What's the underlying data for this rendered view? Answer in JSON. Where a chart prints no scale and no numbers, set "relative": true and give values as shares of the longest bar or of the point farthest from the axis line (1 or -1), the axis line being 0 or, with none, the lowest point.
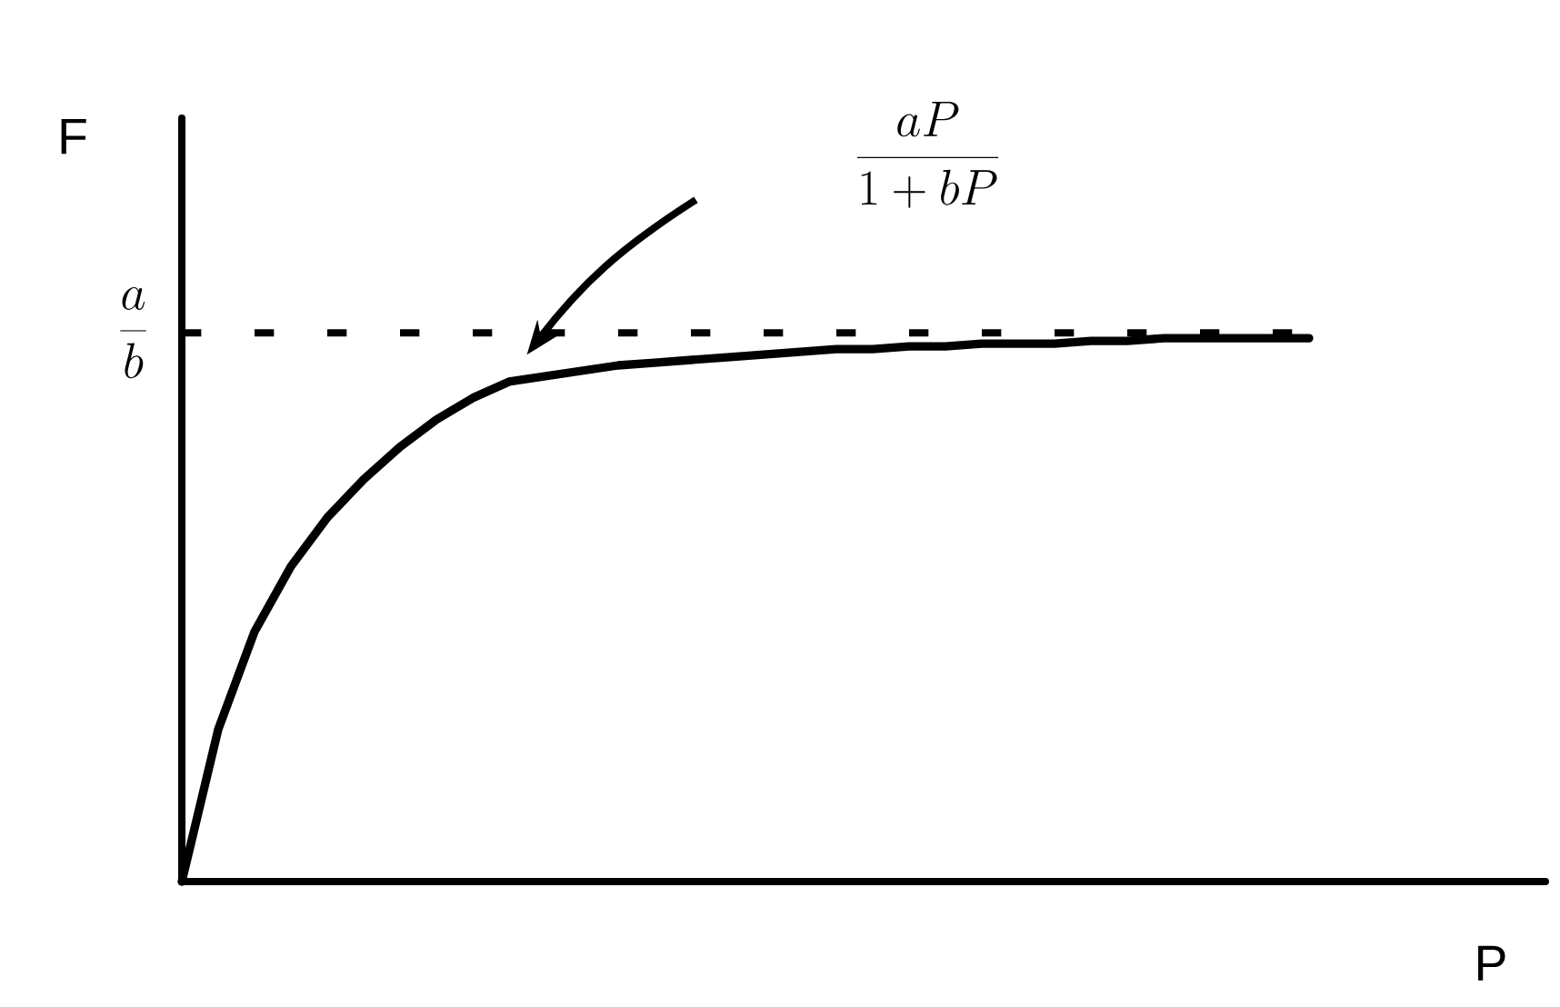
{
  "chart_data": {
    "type": "line",
    "relative": true,
    "xlabel": "P",
    "ylabel": "F",
    "categories": [
      null,
      null,
      null,
      null,
      null,
      null,
      null,
      null,
      null,
      null,
      null,
      null,
      null,
      null,
      null,
      null,
      null,
      null,
      null,
      null,
      null,
      null,
      null,
      null,
      null,
      null,
      null,
      null,
      null,
      null,
      null,
      null
    ],
    "series": [
      {
        "color": "#000000",
        "values": [
          0,
          0.28,
          0.46,
          0.58,
          0.67,
          0.74,
          0.8,
          0.85,
          0.89,
          0.92,
          0.93,
          0.94,
          0.95,
          0.955,
          0.96,
          0.965,
          0.97,
          0.975,
          0.98,
          0.98,
          0.985,
          0.985,
          0.99,
          0.99,
          0.99,
          0.995,
          0.995,
          1,
          1,
          1,
          1,
          1
        ]
      }
    ],
    "ref_lines": [
      {
        "axis": "y",
        "value": 1.01,
        "label": "\\frac{a}{b}",
        "line_style": "dashed",
        "color": "#000000"
      }
    ],
    "annotations": [
      "\\frac{aP}{1+bP}"
    ]
  }
}
